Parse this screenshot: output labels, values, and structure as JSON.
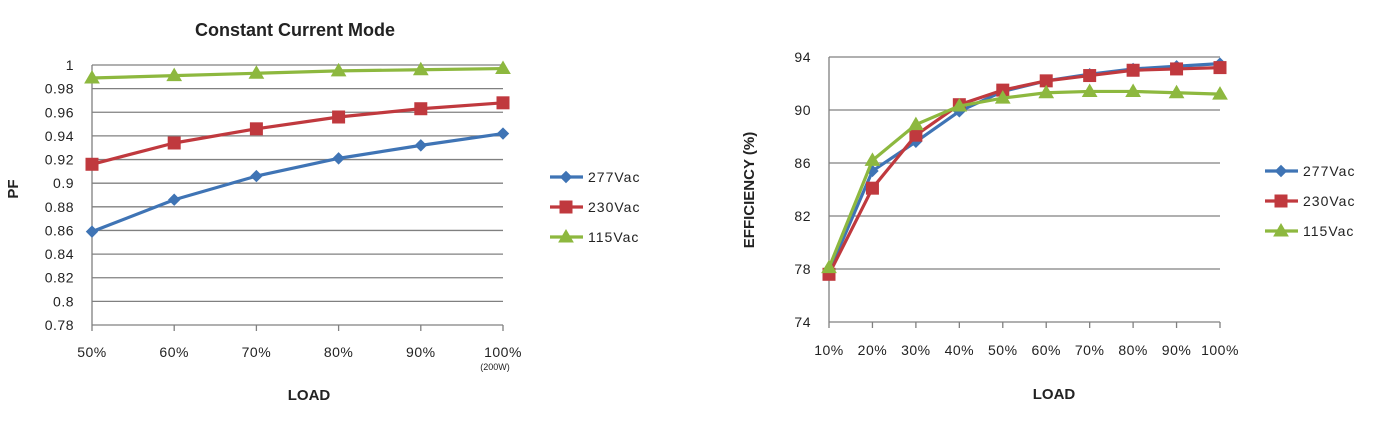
{
  "chart_data": [
    {
      "type": "line",
      "title": "Constant Current Mode",
      "xlabel": "LOAD",
      "ylabel": "PF",
      "categories": [
        "50%",
        "60%",
        "70%",
        "80%",
        "90%",
        "100%"
      ],
      "category_notes": [
        "",
        "",
        "",
        "",
        "",
        "(200W)"
      ],
      "ylim": [
        0.78,
        1.0
      ],
      "yticks": [
        0.78,
        0.8,
        0.82,
        0.84,
        0.86,
        0.88,
        0.9,
        0.92,
        0.94,
        0.96,
        0.98,
        1
      ],
      "ytick_labels": [
        "0.78",
        "0.8",
        "0.82",
        "0.84",
        "0.86",
        "0.88",
        "0.9",
        "0.92",
        "0.94",
        "0.96",
        "0.98",
        "1"
      ],
      "grid": true,
      "legend_position": "right",
      "series": [
        {
          "name": "277Vac",
          "color": "#3F74B5",
          "marker": "diamond",
          "values": [
            0.859,
            0.886,
            0.906,
            0.921,
            0.932,
            0.942
          ]
        },
        {
          "name": "230Vac",
          "color": "#C0393E",
          "marker": "square",
          "values": [
            0.916,
            0.934,
            0.946,
            0.956,
            0.963,
            0.968
          ]
        },
        {
          "name": "115Vac",
          "color": "#8DB83F",
          "marker": "triangle",
          "values": [
            0.989,
            0.991,
            0.993,
            0.995,
            0.996,
            0.997
          ]
        }
      ]
    },
    {
      "type": "line",
      "title": "",
      "xlabel": "LOAD",
      "ylabel": "EFFICIENCY (%)",
      "categories": [
        "10%",
        "20%",
        "30%",
        "40%",
        "50%",
        "60%",
        "70%",
        "80%",
        "90%",
        "100%"
      ],
      "ylim": [
        74,
        94
      ],
      "yticks": [
        74,
        78,
        82,
        86,
        90,
        94
      ],
      "ytick_labels": [
        "74",
        "78",
        "82",
        "86",
        "90",
        "94"
      ],
      "grid": true,
      "legend_position": "right",
      "series": [
        {
          "name": "277Vac",
          "color": "#3F74B5",
          "marker": "diamond",
          "values": [
            77.8,
            85.4,
            87.6,
            89.9,
            91.4,
            92.2,
            92.7,
            93.1,
            93.3,
            93.5
          ]
        },
        {
          "name": "230Vac",
          "color": "#C0393E",
          "marker": "square",
          "values": [
            77.6,
            84.1,
            88.1,
            90.4,
            91.5,
            92.2,
            92.6,
            93.0,
            93.1,
            93.2
          ]
        },
        {
          "name": "115Vac",
          "color": "#8DB83F",
          "marker": "triangle",
          "values": [
            78.1,
            86.2,
            88.9,
            90.3,
            90.9,
            91.3,
            91.4,
            91.4,
            91.3,
            91.2
          ]
        }
      ]
    }
  ]
}
